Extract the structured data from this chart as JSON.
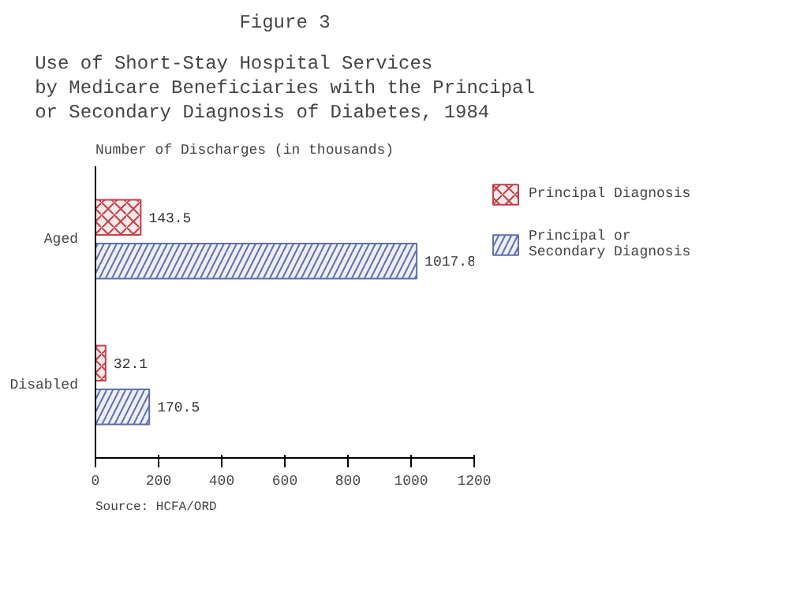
{
  "chart_data": {
    "type": "bar",
    "orientation": "horizontal",
    "title": "Figure 3",
    "subtitle": "Use of Short-Stay Hospital Services\nby Medicare Beneficiaries with the Principal\nor Secondary Diagnosis of Diabetes, 1984",
    "xlabel": "Number of Discharges (in thousands)",
    "categories": [
      "Aged",
      "Disabled"
    ],
    "series": [
      {
        "name": "Principal Diagnosis",
        "color": "#c0404a",
        "values": [
          143.5,
          32.1
        ]
      },
      {
        "name": "Principal or Secondary Diagnosis",
        "color": "#6070a8",
        "values": [
          1017.8,
          170.5
        ]
      }
    ],
    "xlim": [
      0,
      1200
    ],
    "xticks": [
      0,
      200,
      400,
      600,
      800,
      1000,
      1200
    ],
    "data_labels": true,
    "grid": false,
    "legend": "right",
    "annotations": [
      "Source:   HCFA/ORD"
    ]
  }
}
